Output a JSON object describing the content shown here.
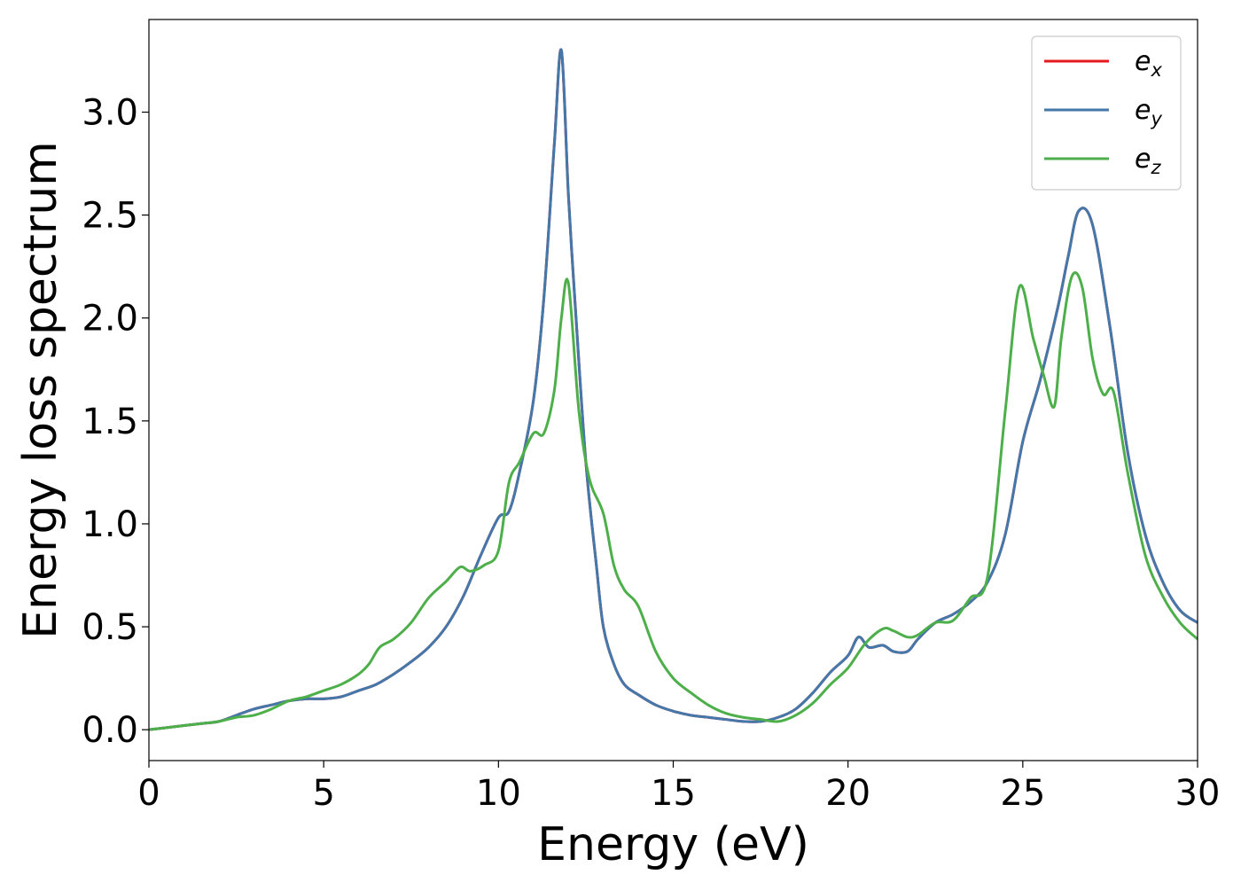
{
  "chart_data": {
    "type": "line",
    "xlabel": "Energy (eV)",
    "ylabel": "Energy loss spectrum",
    "xlim": [
      0,
      30
    ],
    "ylim": [
      -0.15,
      3.45
    ],
    "xticks": [
      0,
      5,
      10,
      15,
      20,
      25,
      30
    ],
    "xtick_labels": [
      "0",
      "5",
      "10",
      "15",
      "20",
      "25",
      "30"
    ],
    "yticks": [
      0.0,
      0.5,
      1.0,
      1.5,
      2.0,
      2.5,
      3.0
    ],
    "ytick_labels": [
      "0.0",
      "0.5",
      "1.0",
      "1.5",
      "2.0",
      "2.5",
      "3.0"
    ],
    "grid": false,
    "legend_position": "top-right",
    "series": [
      {
        "name": "e",
        "sub": "x",
        "color": "#e41a1c",
        "x": [
          0,
          0.5,
          1,
          1.5,
          2,
          2.5,
          3,
          3.5,
          4,
          4.5,
          5,
          5.5,
          6,
          6.5,
          7,
          7.5,
          8,
          8.5,
          9,
          9.5,
          10,
          10.3,
          10.6,
          11,
          11.3,
          11.6,
          11.8,
          12,
          12.2,
          12.5,
          12.8,
          13,
          13.3,
          13.6,
          14,
          14.5,
          15,
          15.5,
          16,
          16.5,
          17,
          17.5,
          18,
          18.5,
          19,
          19.5,
          20,
          20.3,
          20.6,
          21,
          21.3,
          21.7,
          22,
          22.5,
          23,
          23.5,
          24,
          24.5,
          25,
          25.5,
          26,
          26.3,
          26.6,
          27,
          27.5,
          28,
          28.5,
          29,
          29.5,
          30
        ],
        "y": [
          0,
          0.01,
          0.02,
          0.03,
          0.04,
          0.07,
          0.1,
          0.12,
          0.14,
          0.15,
          0.15,
          0.16,
          0.19,
          0.22,
          0.27,
          0.33,
          0.4,
          0.5,
          0.65,
          0.85,
          1.03,
          1.06,
          1.25,
          1.6,
          2.1,
          2.85,
          3.3,
          2.6,
          2.05,
          1.3,
          0.8,
          0.5,
          0.32,
          0.22,
          0.17,
          0.12,
          0.09,
          0.07,
          0.06,
          0.05,
          0.04,
          0.04,
          0.06,
          0.1,
          0.18,
          0.28,
          0.36,
          0.45,
          0.4,
          0.41,
          0.38,
          0.38,
          0.44,
          0.52,
          0.56,
          0.62,
          0.72,
          0.95,
          1.4,
          1.7,
          2.05,
          2.3,
          2.52,
          2.45,
          1.95,
          1.35,
          0.95,
          0.72,
          0.58,
          0.52
        ]
      },
      {
        "name": "e",
        "sub": "y",
        "color": "#4477aa",
        "x": [
          0,
          0.5,
          1,
          1.5,
          2,
          2.5,
          3,
          3.5,
          4,
          4.5,
          5,
          5.5,
          6,
          6.5,
          7,
          7.5,
          8,
          8.5,
          9,
          9.5,
          10,
          10.3,
          10.6,
          11,
          11.3,
          11.6,
          11.8,
          12,
          12.2,
          12.5,
          12.8,
          13,
          13.3,
          13.6,
          14,
          14.5,
          15,
          15.5,
          16,
          16.5,
          17,
          17.5,
          18,
          18.5,
          19,
          19.5,
          20,
          20.3,
          20.6,
          21,
          21.3,
          21.7,
          22,
          22.5,
          23,
          23.5,
          24,
          24.5,
          25,
          25.5,
          26,
          26.3,
          26.6,
          27,
          27.5,
          28,
          28.5,
          29,
          29.5,
          30
        ],
        "y": [
          0,
          0.01,
          0.02,
          0.03,
          0.04,
          0.07,
          0.1,
          0.12,
          0.14,
          0.15,
          0.15,
          0.16,
          0.19,
          0.22,
          0.27,
          0.33,
          0.4,
          0.5,
          0.65,
          0.85,
          1.03,
          1.06,
          1.25,
          1.6,
          2.1,
          2.85,
          3.3,
          2.6,
          2.05,
          1.3,
          0.8,
          0.5,
          0.32,
          0.22,
          0.17,
          0.12,
          0.09,
          0.07,
          0.06,
          0.05,
          0.04,
          0.04,
          0.06,
          0.1,
          0.18,
          0.28,
          0.36,
          0.45,
          0.4,
          0.41,
          0.38,
          0.38,
          0.44,
          0.52,
          0.56,
          0.62,
          0.72,
          0.95,
          1.4,
          1.7,
          2.05,
          2.3,
          2.52,
          2.45,
          1.95,
          1.35,
          0.95,
          0.72,
          0.58,
          0.52
        ]
      },
      {
        "name": "e",
        "sub": "z",
        "color": "#4daf4a",
        "x": [
          0,
          0.5,
          1,
          1.5,
          2,
          2.5,
          3,
          3.5,
          4,
          4.5,
          5,
          5.5,
          6,
          6.3,
          6.6,
          7,
          7.5,
          8,
          8.5,
          8.9,
          9.2,
          9.6,
          10,
          10.3,
          10.6,
          11,
          11.3,
          11.6,
          11.8,
          12,
          12.3,
          12.6,
          13,
          13.3,
          13.6,
          14,
          14.5,
          15,
          15.5,
          16,
          16.5,
          17,
          17.5,
          18,
          18.5,
          19,
          19.5,
          20,
          20.5,
          21,
          21.3,
          21.7,
          22,
          22.5,
          23,
          23.5,
          24,
          24.5,
          24.9,
          25.3,
          25.6,
          25.9,
          26.1,
          26.4,
          26.7,
          27,
          27.3,
          27.6,
          28,
          28.5,
          29,
          29.5,
          30
        ],
        "y": [
          0,
          0.01,
          0.02,
          0.03,
          0.04,
          0.06,
          0.07,
          0.1,
          0.14,
          0.16,
          0.19,
          0.22,
          0.27,
          0.32,
          0.4,
          0.44,
          0.52,
          0.64,
          0.72,
          0.79,
          0.77,
          0.8,
          0.87,
          1.2,
          1.3,
          1.44,
          1.44,
          1.65,
          2.0,
          2.17,
          1.55,
          1.22,
          1.05,
          0.8,
          0.68,
          0.6,
          0.38,
          0.25,
          0.18,
          0.12,
          0.08,
          0.06,
          0.05,
          0.04,
          0.07,
          0.13,
          0.22,
          0.3,
          0.42,
          0.49,
          0.48,
          0.45,
          0.46,
          0.52,
          0.53,
          0.64,
          0.75,
          1.55,
          2.15,
          1.9,
          1.72,
          1.57,
          1.9,
          2.2,
          2.15,
          1.8,
          1.63,
          1.64,
          1.25,
          0.85,
          0.65,
          0.52,
          0.44
        ]
      }
    ]
  }
}
